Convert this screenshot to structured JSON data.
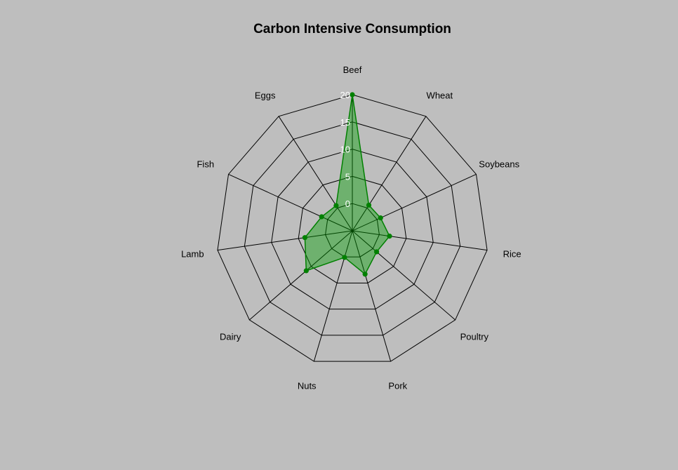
{
  "chart_data": {
    "type": "radar",
    "title": "Carbon Intensive Consumption",
    "categories": [
      "Beef",
      "Wheat",
      "Soybeans",
      "Rice",
      "Poultry",
      "Pork",
      "Nuts",
      "Dairy",
      "Lamb",
      "Fish",
      "Eggs"
    ],
    "series": [
      {
        "values": [
          20,
          0.6,
          0.7,
          1.9,
          0.9,
          3.3,
          0.1,
          6.2,
          3.8,
          1.2,
          0.5
        ]
      }
    ],
    "radial_ticks": [
      "0",
      "5",
      "10",
      "15",
      "20"
    ],
    "rlim": [
      -5,
      20
    ],
    "grid": true,
    "colors": {
      "background": "#bebebe",
      "fill": "#00a000",
      "fill_opacity": 0.42,
      "line": "#008000",
      "point": "#008000",
      "grid": "#000000",
      "tick_label": "#ffffff"
    }
  }
}
